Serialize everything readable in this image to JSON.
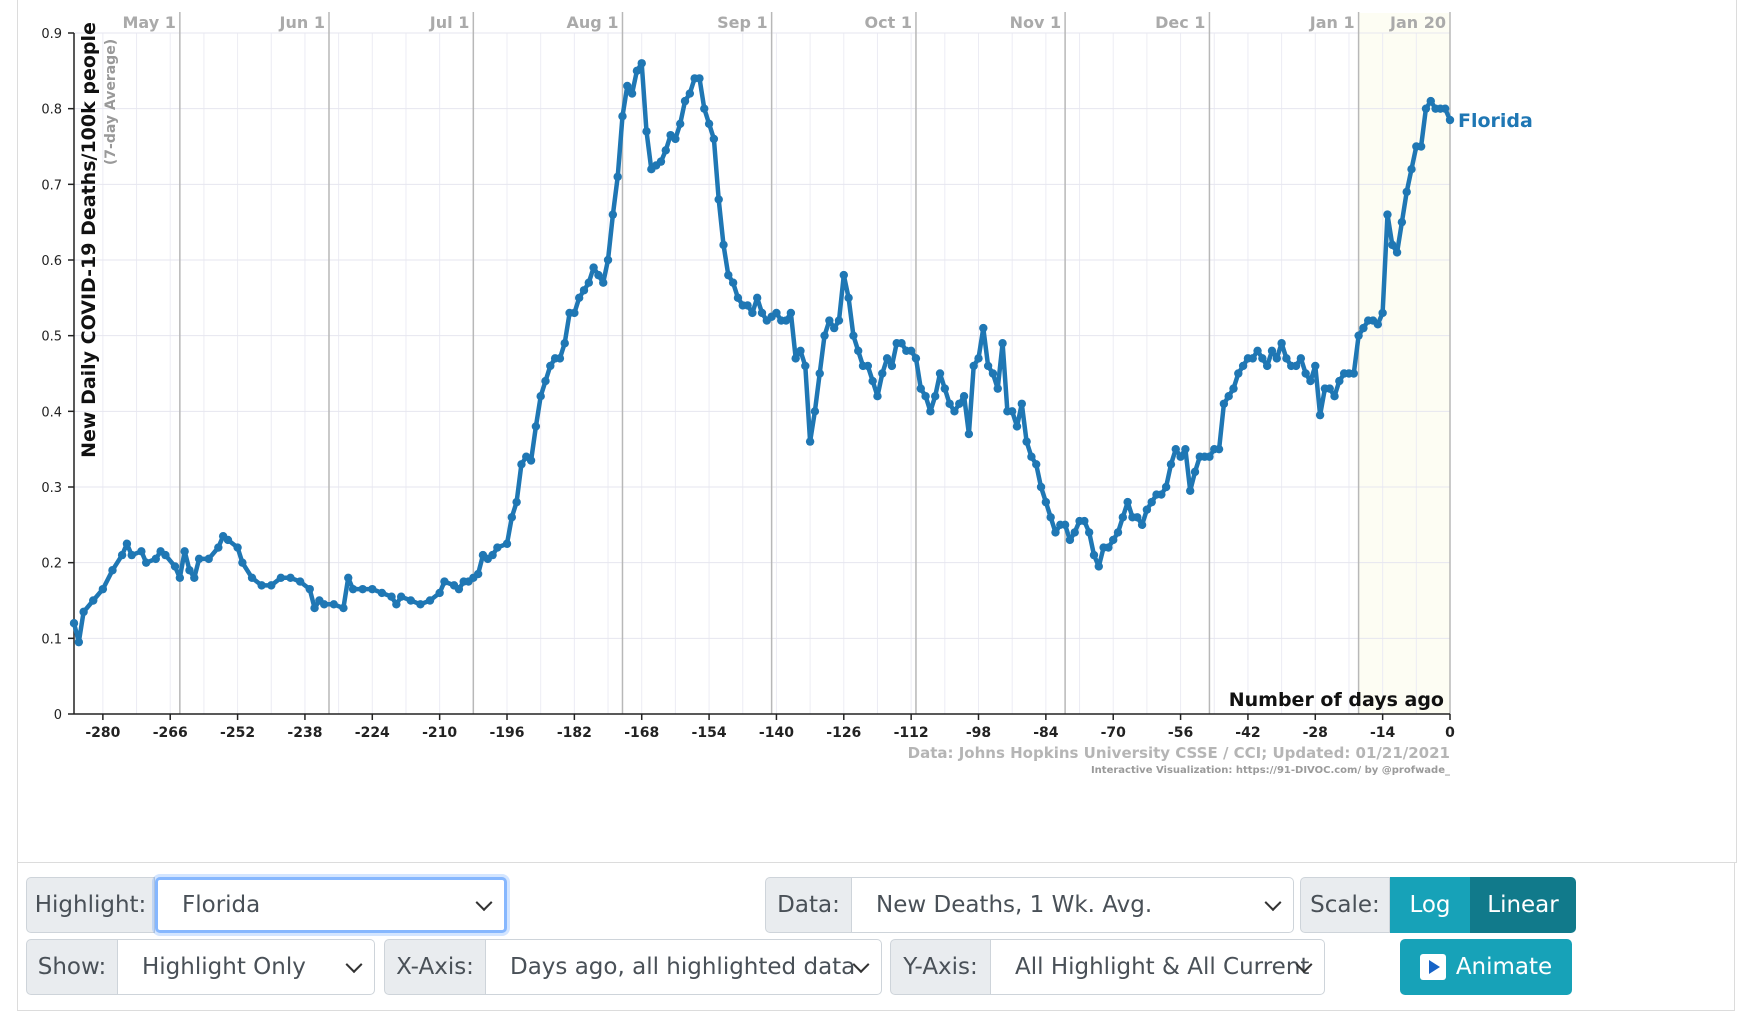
{
  "chart_data": {
    "type": "line",
    "ylabel": "New Daily COVID-19 Deaths/100k people",
    "ylabel_sub": "(7-day Average)",
    "xlabel": "Number of days ago",
    "ylim": [
      0,
      0.9
    ],
    "xlim": [
      -286,
      0
    ],
    "y_ticks": [
      "0",
      "0.1",
      "0.2",
      "0.3",
      "0.4",
      "0.5",
      "0.6",
      "0.7",
      "0.8",
      "0.9"
    ],
    "x_ticks": [
      "-280",
      "-266",
      "-252",
      "-238",
      "-224",
      "-210",
      "-196",
      "-182",
      "-168",
      "-154",
      "-140",
      "-126",
      "-112",
      "-98",
      "-84",
      "-70",
      "-56",
      "-42",
      "-28",
      "-14",
      "0"
    ],
    "month_labels": [
      {
        "label": "May 1",
        "x": -264
      },
      {
        "label": "Jun 1",
        "x": -233
      },
      {
        "label": "Jul 1",
        "x": -203
      },
      {
        "label": "Aug 1",
        "x": -172
      },
      {
        "label": "Sep 1",
        "x": -141
      },
      {
        "label": "Oct 1",
        "x": -111
      },
      {
        "label": "Nov 1",
        "x": -80
      },
      {
        "label": "Dec 1",
        "x": -50
      },
      {
        "label": "Jan 1",
        "x": -19
      },
      {
        "label": "Jan 20",
        "x": 0
      }
    ],
    "grid": true,
    "series": [
      {
        "name": "Florida",
        "color": "#1f77b4",
        "points": [
          [
            -286,
            0.12
          ],
          [
            -285,
            0.095
          ],
          [
            -284,
            0.135
          ],
          [
            -282,
            0.15
          ],
          [
            -280,
            0.165
          ],
          [
            -278,
            0.19
          ],
          [
            -276,
            0.21
          ],
          [
            -275,
            0.225
          ],
          [
            -274,
            0.21
          ],
          [
            -272,
            0.215
          ],
          [
            -271,
            0.2
          ],
          [
            -269,
            0.205
          ],
          [
            -268,
            0.215
          ],
          [
            -267,
            0.21
          ],
          [
            -265,
            0.195
          ],
          [
            -264,
            0.18
          ],
          [
            -263,
            0.215
          ],
          [
            -262,
            0.19
          ],
          [
            -261,
            0.18
          ],
          [
            -260,
            0.205
          ],
          [
            -258,
            0.205
          ],
          [
            -256,
            0.22
          ],
          [
            -255,
            0.235
          ],
          [
            -254,
            0.23
          ],
          [
            -252,
            0.22
          ],
          [
            -251,
            0.2
          ],
          [
            -249,
            0.18
          ],
          [
            -247,
            0.17
          ],
          [
            -245,
            0.17
          ],
          [
            -243,
            0.18
          ],
          [
            -241,
            0.18
          ],
          [
            -239,
            0.175
          ],
          [
            -237,
            0.165
          ],
          [
            -236,
            0.14
          ],
          [
            -235,
            0.15
          ],
          [
            -234,
            0.145
          ],
          [
            -232,
            0.145
          ],
          [
            -230,
            0.14
          ],
          [
            -229,
            0.18
          ],
          [
            -228,
            0.165
          ],
          [
            -226,
            0.165
          ],
          [
            -224,
            0.165
          ],
          [
            -222,
            0.16
          ],
          [
            -220,
            0.155
          ],
          [
            -219,
            0.145
          ],
          [
            -218,
            0.155
          ],
          [
            -216,
            0.15
          ],
          [
            -214,
            0.145
          ],
          [
            -212,
            0.15
          ],
          [
            -210,
            0.16
          ],
          [
            -209,
            0.175
          ],
          [
            -207,
            0.17
          ],
          [
            -206,
            0.165
          ],
          [
            -205,
            0.175
          ],
          [
            -204,
            0.175
          ],
          [
            -203,
            0.18
          ],
          [
            -202,
            0.185
          ],
          [
            -201,
            0.21
          ],
          [
            -200,
            0.205
          ],
          [
            -199,
            0.21
          ],
          [
            -198,
            0.22
          ],
          [
            -196,
            0.225
          ],
          [
            -195,
            0.26
          ],
          [
            -194,
            0.28
          ],
          [
            -193,
            0.33
          ],
          [
            -192,
            0.34
          ],
          [
            -191,
            0.335
          ],
          [
            -190,
            0.38
          ],
          [
            -189,
            0.42
          ],
          [
            -188,
            0.44
          ],
          [
            -187,
            0.46
          ],
          [
            -186,
            0.47
          ],
          [
            -185,
            0.47
          ],
          [
            -184,
            0.49
          ],
          [
            -183,
            0.53
          ],
          [
            -182,
            0.53
          ],
          [
            -181,
            0.55
          ],
          [
            -180,
            0.56
          ],
          [
            -179,
            0.57
          ],
          [
            -178,
            0.59
          ],
          [
            -177,
            0.58
          ],
          [
            -176,
            0.57
          ],
          [
            -175,
            0.6
          ],
          [
            -174,
            0.66
          ],
          [
            -173,
            0.71
          ],
          [
            -172,
            0.79
          ],
          [
            -171,
            0.83
          ],
          [
            -170,
            0.82
          ],
          [
            -169,
            0.85
          ],
          [
            -168,
            0.86
          ],
          [
            -167,
            0.77
          ],
          [
            -166,
            0.72
          ],
          [
            -165,
            0.725
          ],
          [
            -164,
            0.73
          ],
          [
            -163,
            0.745
          ],
          [
            -162,
            0.765
          ],
          [
            -161,
            0.76
          ],
          [
            -160,
            0.78
          ],
          [
            -159,
            0.81
          ],
          [
            -158,
            0.82
          ],
          [
            -157,
            0.84
          ],
          [
            -156,
            0.84
          ],
          [
            -155,
            0.8
          ],
          [
            -154,
            0.78
          ],
          [
            -153,
            0.76
          ],
          [
            -152,
            0.68
          ],
          [
            -151,
            0.62
          ],
          [
            -150,
            0.58
          ],
          [
            -149,
            0.57
          ],
          [
            -148,
            0.55
          ],
          [
            -147,
            0.54
          ],
          [
            -146,
            0.54
          ],
          [
            -145,
            0.53
          ],
          [
            -144,
            0.55
          ],
          [
            -143,
            0.53
          ],
          [
            -142,
            0.52
          ],
          [
            -141,
            0.525
          ],
          [
            -140,
            0.53
          ],
          [
            -139,
            0.52
          ],
          [
            -138,
            0.52
          ],
          [
            -137,
            0.53
          ],
          [
            -136,
            0.47
          ],
          [
            -135,
            0.48
          ],
          [
            -134,
            0.46
          ],
          [
            -133,
            0.36
          ],
          [
            -132,
            0.4
          ],
          [
            -131,
            0.45
          ],
          [
            -130,
            0.5
          ],
          [
            -129,
            0.52
          ],
          [
            -128,
            0.51
          ],
          [
            -127,
            0.52
          ],
          [
            -126,
            0.58
          ],
          [
            -125,
            0.55
          ],
          [
            -124,
            0.5
          ],
          [
            -123,
            0.48
          ],
          [
            -122,
            0.46
          ],
          [
            -121,
            0.46
          ],
          [
            -120,
            0.44
          ],
          [
            -119,
            0.42
          ],
          [
            -118,
            0.45
          ],
          [
            -117,
            0.47
          ],
          [
            -116,
            0.46
          ],
          [
            -115,
            0.49
          ],
          [
            -114,
            0.49
          ],
          [
            -113,
            0.48
          ],
          [
            -112,
            0.48
          ],
          [
            -111,
            0.47
          ],
          [
            -110,
            0.43
          ],
          [
            -109,
            0.42
          ],
          [
            -108,
            0.4
          ],
          [
            -107,
            0.42
          ],
          [
            -106,
            0.45
          ],
          [
            -105,
            0.43
          ],
          [
            -104,
            0.41
          ],
          [
            -103,
            0.4
          ],
          [
            -102,
            0.41
          ],
          [
            -101,
            0.42
          ],
          [
            -100,
            0.37
          ],
          [
            -99,
            0.46
          ],
          [
            -98,
            0.47
          ],
          [
            -97,
            0.51
          ],
          [
            -96,
            0.46
          ],
          [
            -95,
            0.45
          ],
          [
            -94,
            0.43
          ],
          [
            -93,
            0.49
          ],
          [
            -92,
            0.4
          ],
          [
            -91,
            0.4
          ],
          [
            -90,
            0.38
          ],
          [
            -89,
            0.41
          ],
          [
            -88,
            0.36
          ],
          [
            -87,
            0.34
          ],
          [
            -86,
            0.33
          ],
          [
            -85,
            0.3
          ],
          [
            -84,
            0.28
          ],
          [
            -83,
            0.26
          ],
          [
            -82,
            0.24
          ],
          [
            -81,
            0.25
          ],
          [
            -80,
            0.25
          ],
          [
            -79,
            0.23
          ],
          [
            -78,
            0.24
          ],
          [
            -77,
            0.255
          ],
          [
            -76,
            0.255
          ],
          [
            -75,
            0.24
          ],
          [
            -74,
            0.21
          ],
          [
            -73,
            0.195
          ],
          [
            -72,
            0.22
          ],
          [
            -71,
            0.22
          ],
          [
            -70,
            0.23
          ],
          [
            -69,
            0.24
          ],
          [
            -68,
            0.26
          ],
          [
            -67,
            0.28
          ],
          [
            -66,
            0.26
          ],
          [
            -65,
            0.26
          ],
          [
            -64,
            0.25
          ],
          [
            -63,
            0.27
          ],
          [
            -62,
            0.28
          ],
          [
            -61,
            0.29
          ],
          [
            -60,
            0.29
          ],
          [
            -59,
            0.3
          ],
          [
            -58,
            0.33
          ],
          [
            -57,
            0.35
          ],
          [
            -56,
            0.34
          ],
          [
            -55,
            0.35
          ],
          [
            -54,
            0.295
          ],
          [
            -53,
            0.32
          ],
          [
            -52,
            0.34
          ],
          [
            -51,
            0.34
          ],
          [
            -50,
            0.34
          ],
          [
            -49,
            0.35
          ],
          [
            -48,
            0.35
          ],
          [
            -47,
            0.41
          ],
          [
            -46,
            0.42
          ],
          [
            -45,
            0.43
          ],
          [
            -44,
            0.45
          ],
          [
            -43,
            0.46
          ],
          [
            -42,
            0.47
          ],
          [
            -41,
            0.47
          ],
          [
            -40,
            0.48
          ],
          [
            -39,
            0.47
          ],
          [
            -38,
            0.46
          ],
          [
            -37,
            0.48
          ],
          [
            -36,
            0.47
          ],
          [
            -35,
            0.49
          ],
          [
            -34,
            0.47
          ],
          [
            -33,
            0.46
          ],
          [
            -32,
            0.46
          ],
          [
            -31,
            0.47
          ],
          [
            -30,
            0.45
          ],
          [
            -29,
            0.44
          ],
          [
            -28,
            0.46
          ],
          [
            -27,
            0.395
          ],
          [
            -26,
            0.43
          ],
          [
            -25,
            0.43
          ],
          [
            -24,
            0.42
          ],
          [
            -23,
            0.44
          ],
          [
            -22,
            0.45
          ],
          [
            -21,
            0.45
          ],
          [
            -20,
            0.45
          ],
          [
            -19,
            0.5
          ],
          [
            -18,
            0.51
          ],
          [
            -17,
            0.52
          ],
          [
            -16,
            0.52
          ],
          [
            -15,
            0.515
          ],
          [
            -14,
            0.53
          ],
          [
            -13,
            0.66
          ],
          [
            -12,
            0.62
          ],
          [
            -11,
            0.61
          ],
          [
            -10,
            0.65
          ],
          [
            -9,
            0.69
          ],
          [
            -8,
            0.72
          ],
          [
            -7,
            0.75
          ],
          [
            -6,
            0.75
          ],
          [
            -5,
            0.8
          ],
          [
            -4,
            0.81
          ],
          [
            -3,
            0.8
          ],
          [
            -2,
            0.8
          ],
          [
            -1,
            0.8
          ],
          [
            0,
            0.785
          ]
        ]
      }
    ],
    "highlight_end_label": "Florida",
    "source": "Data: Johns Hopkins University CSSE / CCI; Updated: 01/21/2021",
    "credit": "Interactive Visualization: https://91-DIVOC.com/ by @profwade_"
  },
  "controls": {
    "highlight": {
      "label": "Highlight:",
      "value": "Florida"
    },
    "data": {
      "label": "Data:",
      "value": "New Deaths, 1 Wk. Avg."
    },
    "scale": {
      "label": "Scale:",
      "log": "Log",
      "linear": "Linear"
    },
    "show": {
      "label": "Show:",
      "value": "Highlight Only"
    },
    "xaxis": {
      "label": "X-Axis:",
      "value": "Days ago, all highlighted data"
    },
    "yaxis": {
      "label": "Y-Axis:",
      "value": "All Highlight & All Current"
    },
    "animate": {
      "label": "Animate",
      "icon": "play-icon"
    }
  }
}
